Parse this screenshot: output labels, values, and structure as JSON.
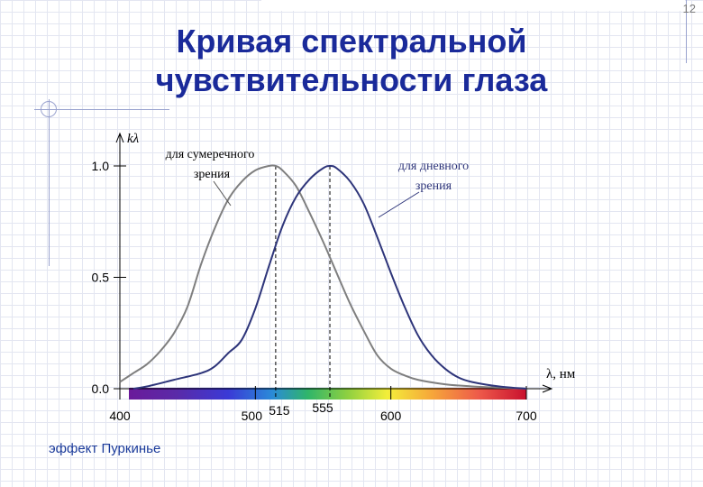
{
  "slide": {
    "number": "12",
    "title_line1": "Кривая спектральной",
    "title_line2": "чувствительности глаза",
    "footer_note": "эффект Пуркинье"
  },
  "colors": {
    "title": "#1a2a9a",
    "scotopic_curve": "#7f7f7f",
    "photopic_curve": "#2e357a",
    "axis": "#000000"
  },
  "chart_data": {
    "type": "line",
    "ylabel": "kλ",
    "xlabel": "λ, нм",
    "xlim": [
      400,
      700
    ],
    "ylim": [
      0,
      1.0
    ],
    "y_ticks": [
      {
        "value": 0.0,
        "label": "0.0"
      },
      {
        "value": 0.5,
        "label": "0.5"
      },
      {
        "value": 1.0,
        "label": "1.0"
      }
    ],
    "x_ticks": [
      {
        "value": 400,
        "label": "400"
      },
      {
        "value": 500,
        "label": "500"
      },
      {
        "value": 515,
        "label": "515"
      },
      {
        "value": 555,
        "label": "555"
      },
      {
        "value": 600,
        "label": "600"
      },
      {
        "value": 700,
        "label": "700"
      }
    ],
    "peak_markers": [
      515,
      555
    ],
    "spectrum_band": {
      "from": 400,
      "to": 700
    },
    "series": [
      {
        "name": "для сумеречного зрения",
        "annotation_line1": "для сумеречного",
        "annotation_line2": "зрения",
        "points": [
          [
            400,
            0.03
          ],
          [
            410,
            0.07
          ],
          [
            420,
            0.11
          ],
          [
            430,
            0.17
          ],
          [
            440,
            0.25
          ],
          [
            450,
            0.37
          ],
          [
            460,
            0.56
          ],
          [
            470,
            0.72
          ],
          [
            480,
            0.85
          ],
          [
            490,
            0.93
          ],
          [
            500,
            0.98
          ],
          [
            510,
            1.0
          ],
          [
            515,
            1.0
          ],
          [
            520,
            0.98
          ],
          [
            530,
            0.91
          ],
          [
            540,
            0.79
          ],
          [
            550,
            0.66
          ],
          [
            560,
            0.52
          ],
          [
            570,
            0.38
          ],
          [
            580,
            0.26
          ],
          [
            590,
            0.15
          ],
          [
            600,
            0.09
          ],
          [
            610,
            0.06
          ],
          [
            620,
            0.04
          ],
          [
            640,
            0.02
          ],
          [
            660,
            0.01
          ],
          [
            680,
            0.005
          ],
          [
            700,
            0.0
          ]
        ]
      },
      {
        "name": "для дневного зрения",
        "annotation_line1": "для дневного",
        "annotation_line2": "зрения",
        "points": [
          [
            410,
            0.0
          ],
          [
            420,
            0.01
          ],
          [
            440,
            0.04
          ],
          [
            460,
            0.07
          ],
          [
            470,
            0.1
          ],
          [
            480,
            0.16
          ],
          [
            490,
            0.22
          ],
          [
            500,
            0.36
          ],
          [
            510,
            0.55
          ],
          [
            520,
            0.73
          ],
          [
            530,
            0.86
          ],
          [
            540,
            0.94
          ],
          [
            550,
            0.99
          ],
          [
            555,
            1.0
          ],
          [
            560,
            0.99
          ],
          [
            570,
            0.93
          ],
          [
            580,
            0.83
          ],
          [
            590,
            0.68
          ],
          [
            600,
            0.52
          ],
          [
            610,
            0.37
          ],
          [
            620,
            0.24
          ],
          [
            630,
            0.15
          ],
          [
            640,
            0.09
          ],
          [
            650,
            0.05
          ],
          [
            660,
            0.03
          ],
          [
            680,
            0.01
          ],
          [
            700,
            0.0
          ]
        ]
      }
    ]
  }
}
